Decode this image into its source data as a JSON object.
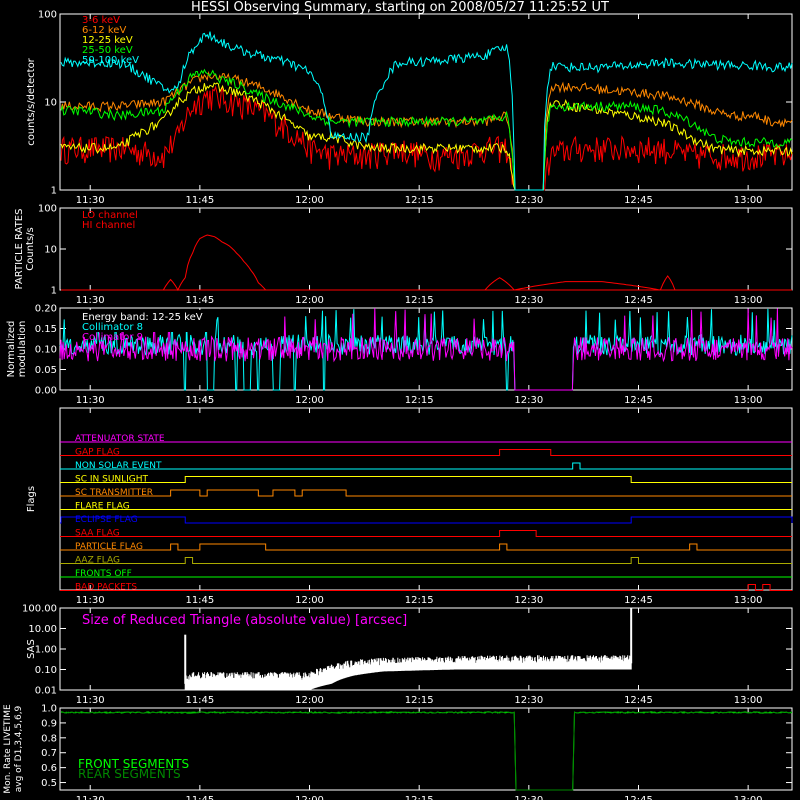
{
  "title": "HESSI Observing Summary, starting on 2008/05/27 11:25:52 UT",
  "time_axis": {
    "start": "11:25:52",
    "end": "13:06:00",
    "tick_labels": [
      "11:30",
      "11:45",
      "12:00",
      "12:15",
      "12:30",
      "12:45",
      "13:00"
    ]
  },
  "colors": {
    "3-6": "#ff0000",
    "6-12": "#ff8800",
    "12-25": "#ffff00",
    "25-50": "#00ff00",
    "50-100": "#00ffff",
    "magenta": "#ff00ff",
    "white": "#ffffff",
    "front": "#00ff00",
    "rear": "#008800"
  },
  "chart_data": [
    {
      "id": "count-rates",
      "type": "line",
      "ylabel": "counts/s/detector",
      "yscale": "log",
      "ylim": [
        1,
        100
      ],
      "ytick_labels": [
        "1",
        "10",
        "100"
      ],
      "x": [
        "11:26",
        "11:29",
        "11:34",
        "11:40",
        "11:42",
        "11:44",
        "11:46",
        "11:48",
        "11:50",
        "11:53",
        "11:57",
        "12:00",
        "12:03",
        "12:08",
        "12:12",
        "12:16",
        "12:20",
        "12:24",
        "12:27",
        "12:28",
        "12:32",
        "12:33",
        "12:36",
        "12:40",
        "12:44",
        "12:48",
        "12:52",
        "12:55",
        "12:58",
        "13:01",
        "13:03",
        "13:06"
      ],
      "series": [
        {
          "name": "3-6 keV",
          "color_key": "3-6",
          "values": [
            3,
            3,
            3,
            2.5,
            4,
            9,
            12,
            11,
            10,
            8,
            5,
            3,
            2.5,
            2.5,
            3,
            2.5,
            2.5,
            3,
            3,
            1,
            1,
            2.5,
            3,
            3,
            3,
            3,
            2.5,
            2.5,
            2.5,
            2.5,
            2.5,
            2.5
          ]
        },
        {
          "name": "6-12 keV",
          "color_key": "6-12",
          "values": [
            9,
            9,
            9,
            10,
            13,
            17,
            20,
            19,
            18,
            15,
            11,
            8,
            7,
            6,
            6,
            6,
            6,
            6,
            7,
            1,
            1,
            15,
            15,
            14,
            13,
            12,
            10,
            8,
            7,
            7,
            6,
            6
          ]
        },
        {
          "name": "12-25 keV",
          "color_key": "12-25",
          "values": [
            3,
            3,
            3,
            6,
            10,
            13,
            16,
            14,
            13,
            10,
            6,
            4,
            4,
            3,
            3,
            3,
            3,
            3,
            3,
            1,
            1,
            10,
            9,
            8,
            7,
            6,
            4,
            3,
            2.8,
            2.8,
            2.8,
            2.8
          ]
        },
        {
          "name": "25-50 keV",
          "color_key": "25-50",
          "values": [
            8,
            8,
            7,
            8,
            13,
            20,
            22,
            18,
            16,
            12,
            9,
            7,
            6,
            6,
            6,
            6,
            6,
            6,
            7,
            1,
            1,
            9,
            9,
            9,
            9,
            8,
            6,
            4,
            3.5,
            3.5,
            3.5,
            3.5
          ]
        },
        {
          "name": "50-100 keV",
          "color_key": "50-100",
          "values": [
            28,
            28,
            28,
            14,
            14,
            40,
            60,
            48,
            40,
            34,
            28,
            22,
            4,
            4,
            28,
            29,
            31,
            34,
            42,
            1,
            1,
            26,
            25,
            25,
            26,
            28,
            27,
            27,
            26,
            26,
            25,
            25
          ]
        }
      ]
    },
    {
      "id": "particle-rates",
      "type": "line",
      "ylabel": "PARTICLE RATES Counts/s",
      "yscale": "log",
      "ylim": [
        1,
        100
      ],
      "ytick_labels": [
        "1",
        "10",
        "100"
      ],
      "x": [
        "11:26",
        "11:40",
        "11:41",
        "11:42",
        "11:43",
        "11:44",
        "11:45",
        "11:46",
        "11:47",
        "11:48",
        "11:49",
        "11:50",
        "11:51",
        "11:52",
        "11:53",
        "11:54",
        "12:24",
        "12:26",
        "12:28",
        "12:35",
        "12:40",
        "12:48",
        "12:49",
        "12:50",
        "13:06"
      ],
      "series": [
        {
          "name": "LO channel",
          "color_key": "3-6",
          "values": [
            1,
            1,
            1.8,
            1,
            2,
            8,
            18,
            22,
            20,
            15,
            12,
            8,
            5,
            3,
            1.5,
            1,
            1,
            2,
            1,
            1.6,
            1.6,
            1,
            2.2,
            1,
            1
          ]
        },
        {
          "name": "HI channel",
          "color_key": "3-6",
          "values": [
            1,
            1,
            1,
            1,
            1,
            1,
            1,
            1,
            1,
            1,
            1,
            1,
            1,
            1,
            1,
            1,
            1,
            1,
            1,
            1,
            1,
            1,
            1,
            1,
            1
          ]
        }
      ]
    },
    {
      "id": "modulation",
      "type": "line",
      "ylabel": "Normalized modulation",
      "annotation": "Energy band: 12-25 keV",
      "ylim": [
        0,
        0.2
      ],
      "ytick_labels": [
        "0.00",
        "0.05",
        "0.10",
        "0.15",
        "0.20"
      ],
      "series": [
        {
          "name": "Collimator 8",
          "color_key": "50-100",
          "level": 0.11,
          "spread": 0.025,
          "gaps": [
            [
              "11:46",
              "11:47"
            ],
            [
              "11:51",
              "11:52"
            ],
            [
              "11:55",
              "11:56"
            ],
            [
              "12:28",
              "12:36"
            ]
          ],
          "drops": [
            "11:43",
            "11:50",
            "11:53",
            "11:58",
            "12:02",
            "12:27"
          ]
        },
        {
          "name": "Collimator 9",
          "color_key": "magenta",
          "level": 0.1,
          "spread": 0.03,
          "gaps": [
            [
              "12:28",
              "12:36"
            ]
          ],
          "drops": []
        }
      ]
    },
    {
      "id": "flags",
      "type": "flags",
      "ylabel": "Flags",
      "flags": [
        {
          "name": "ATTENUATOR STATE",
          "color_key": "magenta",
          "segments": []
        },
        {
          "name": "GAP FLAG",
          "color_key": "3-6",
          "segments": [
            [
              "12:26",
              "12:33"
            ]
          ]
        },
        {
          "name": "NON SOLAR EVENT",
          "color_key": "50-100",
          "segments": [
            [
              "12:36",
              "12:37"
            ]
          ]
        },
        {
          "name": "SC IN SUNLIGHT",
          "color_key": "12-25",
          "segments": [
            [
              "11:43",
              "12:44"
            ]
          ]
        },
        {
          "name": "SC TRANSMITTER",
          "color_key": "6-12",
          "segments": [
            [
              "11:41",
              "11:45"
            ],
            [
              "11:46",
              "11:53"
            ],
            [
              "11:55",
              "11:58"
            ],
            [
              "11:59",
              "12:05"
            ]
          ]
        },
        {
          "name": "FLARE FLAG",
          "color_key": "12-25",
          "segments": []
        },
        {
          "name": "ECLIPSE FLAG",
          "color_key": "blue",
          "segments": [
            [
              "11:26",
              "11:43"
            ],
            [
              "12:44",
              "13:06"
            ]
          ]
        },
        {
          "name": "SAA FLAG",
          "color_key": "3-6",
          "segments": [
            [
              "12:26",
              "12:31"
            ]
          ]
        },
        {
          "name": "PARTICLE FLAG",
          "color_key": "6-12",
          "segments": [
            [
              "11:41",
              "11:42"
            ],
            [
              "11:45",
              "11:54"
            ],
            [
              "12:26",
              "12:27"
            ],
            [
              "12:52",
              "12:53"
            ]
          ]
        },
        {
          "name": "AAZ FLAG",
          "color_key": "olive",
          "segments": [
            [
              "11:43",
              "11:44"
            ],
            [
              "12:44",
              "12:45"
            ]
          ]
        },
        {
          "name": "FRONTS OFF",
          "color_key": "25-50",
          "segments": []
        },
        {
          "name": "BAD PACKETS",
          "color_key": "3-6",
          "segments": [
            [
              "13:00",
              "13:01"
            ],
            [
              "13:02",
              "13:03"
            ]
          ]
        }
      ]
    },
    {
      "id": "sas",
      "type": "line",
      "ylabel": "SAS",
      "annotation": "Size of Reduced Triangle (absolute value) [arcsec]",
      "yscale": "log",
      "ylim": [
        0.01,
        100
      ],
      "ytick_labels": [
        "0.01",
        "0.10",
        "1.00",
        "10.00",
        "100.00"
      ],
      "x": [
        "11:43",
        "11:44",
        "11:50",
        "11:57",
        "12:00",
        "12:03",
        "12:06",
        "12:10",
        "12:20",
        "12:30",
        "12:40",
        "12:43",
        "12:44"
      ],
      "series": [
        {
          "name": "",
          "color_key": "white",
          "values": [
            0.02,
            0.03,
            0.03,
            0.03,
            0.03,
            0.07,
            0.12,
            0.15,
            0.18,
            0.2,
            0.2,
            0.2,
            0.2
          ],
          "lower": [
            0.01,
            0.01,
            0.01,
            0.01,
            0.01,
            0.02,
            0.05,
            0.08,
            0.1,
            0.1,
            0.1,
            0.1,
            0.1
          ]
        }
      ]
    },
    {
      "id": "livetime",
      "type": "line",
      "ylabel": "Mon. Rate LIVETIME avg of D1,3,4,5,6,9",
      "ylim": [
        0.45,
        1.0
      ],
      "ytick_labels": [
        "0.5",
        "0.6",
        "0.7",
        "0.8",
        "0.9",
        "1.0"
      ],
      "x": [
        "11:26",
        "12:28",
        "12:28.1",
        "12:36",
        "12:36.1",
        "13:06"
      ],
      "series": [
        {
          "name": "FRONT SEGMENTS",
          "color_key": "front",
          "values": [
            0.97,
            0.97,
            0.45,
            0.45,
            0.97,
            0.97
          ]
        },
        {
          "name": "REAR SEGMENTS",
          "color_key": "rear",
          "values": [
            0.97,
            0.97,
            0.45,
            0.45,
            0.97,
            0.97
          ]
        }
      ]
    }
  ]
}
